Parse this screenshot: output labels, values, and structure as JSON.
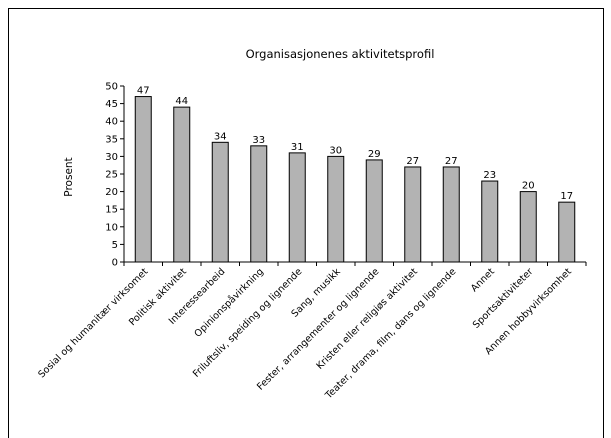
{
  "chart_data": {
    "type": "bar",
    "title": "Organisasjonenes aktivitetsprofil",
    "xlabel": "",
    "ylabel": "Prosent",
    "ylim": [
      0,
      50
    ],
    "yticks": [
      0,
      5,
      10,
      15,
      20,
      25,
      30,
      35,
      40,
      45,
      50
    ],
    "grid": false,
    "legend": "none",
    "categories": [
      "Sosial og humanitær virksomet",
      "Politisk aktivitet",
      "Interessearbeid",
      "Opinionspåvirkning",
      "Friluftsliv, speiding og lignende",
      "Sang, musikk",
      "Fester, arrangementer og lignende",
      "Kristen eller religiøs aktivitet",
      "Teater, drama, film, dans og lignende",
      "Annet",
      "Sportsaktiviteter",
      "Annen hobbyvirksomhet"
    ],
    "values": [
      47,
      44,
      34,
      33,
      31,
      30,
      29,
      27,
      27,
      23,
      20,
      17
    ],
    "colors": {
      "bar_fill": "#b3b3b3",
      "bar_stroke": "#000000"
    }
  }
}
